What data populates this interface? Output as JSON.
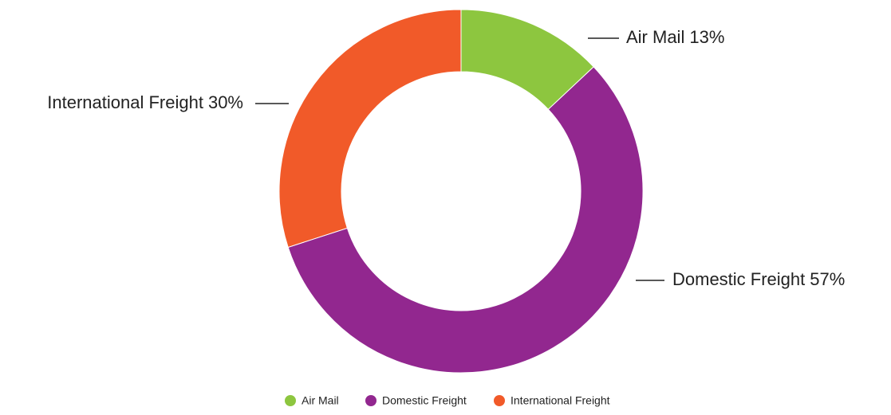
{
  "chart_data": {
    "type": "donut",
    "categories": [
      "Air Mail",
      "Domestic Freight",
      "International Freight"
    ],
    "values": [
      13,
      57,
      30
    ],
    "value_labels": [
      "13%",
      "57%",
      "30%"
    ],
    "colors": [
      "#8dc63f",
      "#92278f",
      "#f15a29"
    ],
    "legend": "bottom"
  }
}
